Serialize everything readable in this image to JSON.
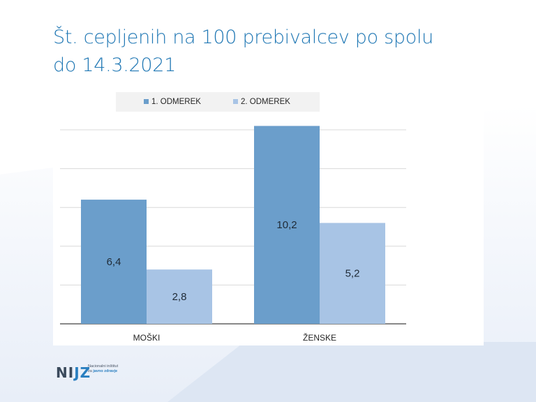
{
  "slide": {
    "title_line1": "Št. cepljenih na 100 prebivalcev po spolu",
    "title_line2": "do 14.3.2021"
  },
  "logo": {
    "mark_ni": "NI",
    "mark_jz": "JZ",
    "line1": "Nacionalni inštitut",
    "line2_prefix": "za ",
    "line2_accent": "javno zdravje"
  },
  "colors": {
    "title": "#1f77b4",
    "series1": "#6b9ecb",
    "series2": "#a8c4e5",
    "background_deco": "#eef2fa"
  },
  "chart_data": {
    "type": "bar",
    "categories": [
      "MOŠKI",
      "ŽENSKE"
    ],
    "series": [
      {
        "name": "1. ODMEREK",
        "values": [
          6.4,
          10.2
        ],
        "labels": [
          "6,4",
          "10,2"
        ],
        "color": "#6b9ecb"
      },
      {
        "name": "2. ODMEREK",
        "values": [
          2.8,
          5.2
        ],
        "labels": [
          "2,8",
          "5,2"
        ],
        "color": "#a8c4e5"
      }
    ],
    "ylim": [
      0,
      10
    ],
    "grid": true,
    "legend": "top"
  }
}
